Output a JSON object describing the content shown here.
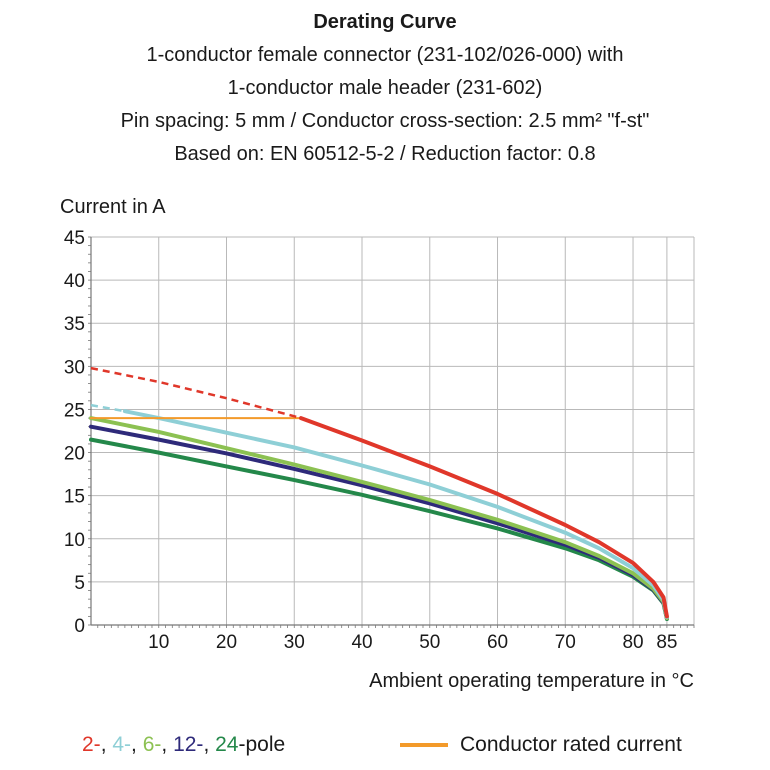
{
  "title": "Derating Curve",
  "subtitle_lines": [
    "1-conductor female connector (231-102/026-000) with",
    "1-conductor male header (231-602)",
    "Pin spacing: 5 mm / Conductor cross-section: 2.5 mm² \"f-st\"",
    "Based on: EN 60512-5-2 / Reduction factor: 0.8"
  ],
  "colors": {
    "pole2": "#e0372a",
    "pole4": "#8ecfd6",
    "pole6": "#8cc152",
    "pole12": "#2e2a7a",
    "pole24": "#24884a",
    "rated": "#f39a2a",
    "grid": "#b9b9b9",
    "axis": "#777777"
  },
  "legend": {
    "pole_items": [
      {
        "text": "2-",
        "color": "#e0372a"
      },
      {
        "text": ", ",
        "color": "#1a1a1a"
      },
      {
        "text": "4-",
        "color": "#8ecfd6"
      },
      {
        "text": ", ",
        "color": "#1a1a1a"
      },
      {
        "text": "6-",
        "color": "#8cc152"
      },
      {
        "text": ", ",
        "color": "#1a1a1a"
      },
      {
        "text": "12-",
        "color": "#2e2a7a"
      },
      {
        "text": ", ",
        "color": "#1a1a1a"
      },
      {
        "text": "24",
        "color": "#24884a"
      },
      {
        "text": "-pole",
        "color": "#1a1a1a"
      }
    ],
    "rated_label": "Conductor rated current"
  },
  "chart_data": {
    "type": "line",
    "xlabel": "Ambient operating temperature in °C",
    "ylabel": "Current in A",
    "xlim": [
      0,
      89
    ],
    "ylim": [
      0,
      45
    ],
    "x_ticks": [
      10,
      20,
      30,
      40,
      50,
      60,
      70,
      80,
      85
    ],
    "y_ticks": [
      0,
      5,
      10,
      15,
      20,
      25,
      30,
      35,
      40,
      45
    ],
    "grid": true,
    "series": [
      {
        "name": "2-pole",
        "color": "#e0372a",
        "dashed_x": [
          0,
          10,
          20,
          31
        ],
        "dashed_y": [
          29.8,
          28.2,
          26.3,
          24.0
        ],
        "x": [
          31,
          40,
          50,
          60,
          70,
          75,
          80,
          83,
          84.5,
          85
        ],
        "y": [
          24.0,
          21.4,
          18.4,
          15.2,
          11.6,
          9.6,
          7.2,
          5.0,
          3.2,
          1.0
        ]
      },
      {
        "name": "4-pole",
        "color": "#8ecfd6",
        "dashed_x": [
          0,
          5
        ],
        "dashed_y": [
          25.5,
          24.8
        ],
        "x": [
          5,
          10,
          20,
          30,
          40,
          50,
          60,
          70,
          75,
          80,
          83,
          84.5,
          85
        ],
        "y": [
          24.8,
          24.0,
          22.3,
          20.6,
          18.5,
          16.3,
          13.7,
          10.7,
          8.9,
          6.6,
          4.6,
          2.9,
          0.9
        ]
      },
      {
        "name": "6-pole",
        "color": "#8cc152",
        "x": [
          0,
          10,
          20,
          30,
          40,
          50,
          60,
          70,
          75,
          80,
          83,
          84.5,
          85
        ],
        "y": [
          24.0,
          22.4,
          20.5,
          18.6,
          16.6,
          14.5,
          12.2,
          9.6,
          8.0,
          6.0,
          4.2,
          2.7,
          0.8
        ]
      },
      {
        "name": "12-pole",
        "color": "#2e2a7a",
        "x": [
          0,
          10,
          20,
          30,
          40,
          50,
          60,
          70,
          75,
          80,
          83,
          84.5,
          85
        ],
        "y": [
          23.0,
          21.5,
          19.9,
          18.1,
          16.2,
          14.1,
          11.8,
          9.3,
          7.8,
          5.8,
          4.1,
          2.6,
          0.8
        ]
      },
      {
        "name": "24-pole",
        "color": "#24884a",
        "x": [
          0,
          10,
          20,
          30,
          40,
          50,
          60,
          70,
          75,
          80,
          83,
          84.5,
          85
        ],
        "y": [
          21.5,
          20.0,
          18.4,
          16.8,
          15.1,
          13.2,
          11.2,
          8.9,
          7.5,
          5.6,
          4.0,
          2.5,
          0.7
        ]
      },
      {
        "name": "Conductor rated current",
        "color": "#f39a2a",
        "x": [
          0,
          31
        ],
        "y": [
          24.0,
          24.0
        ]
      }
    ]
  }
}
